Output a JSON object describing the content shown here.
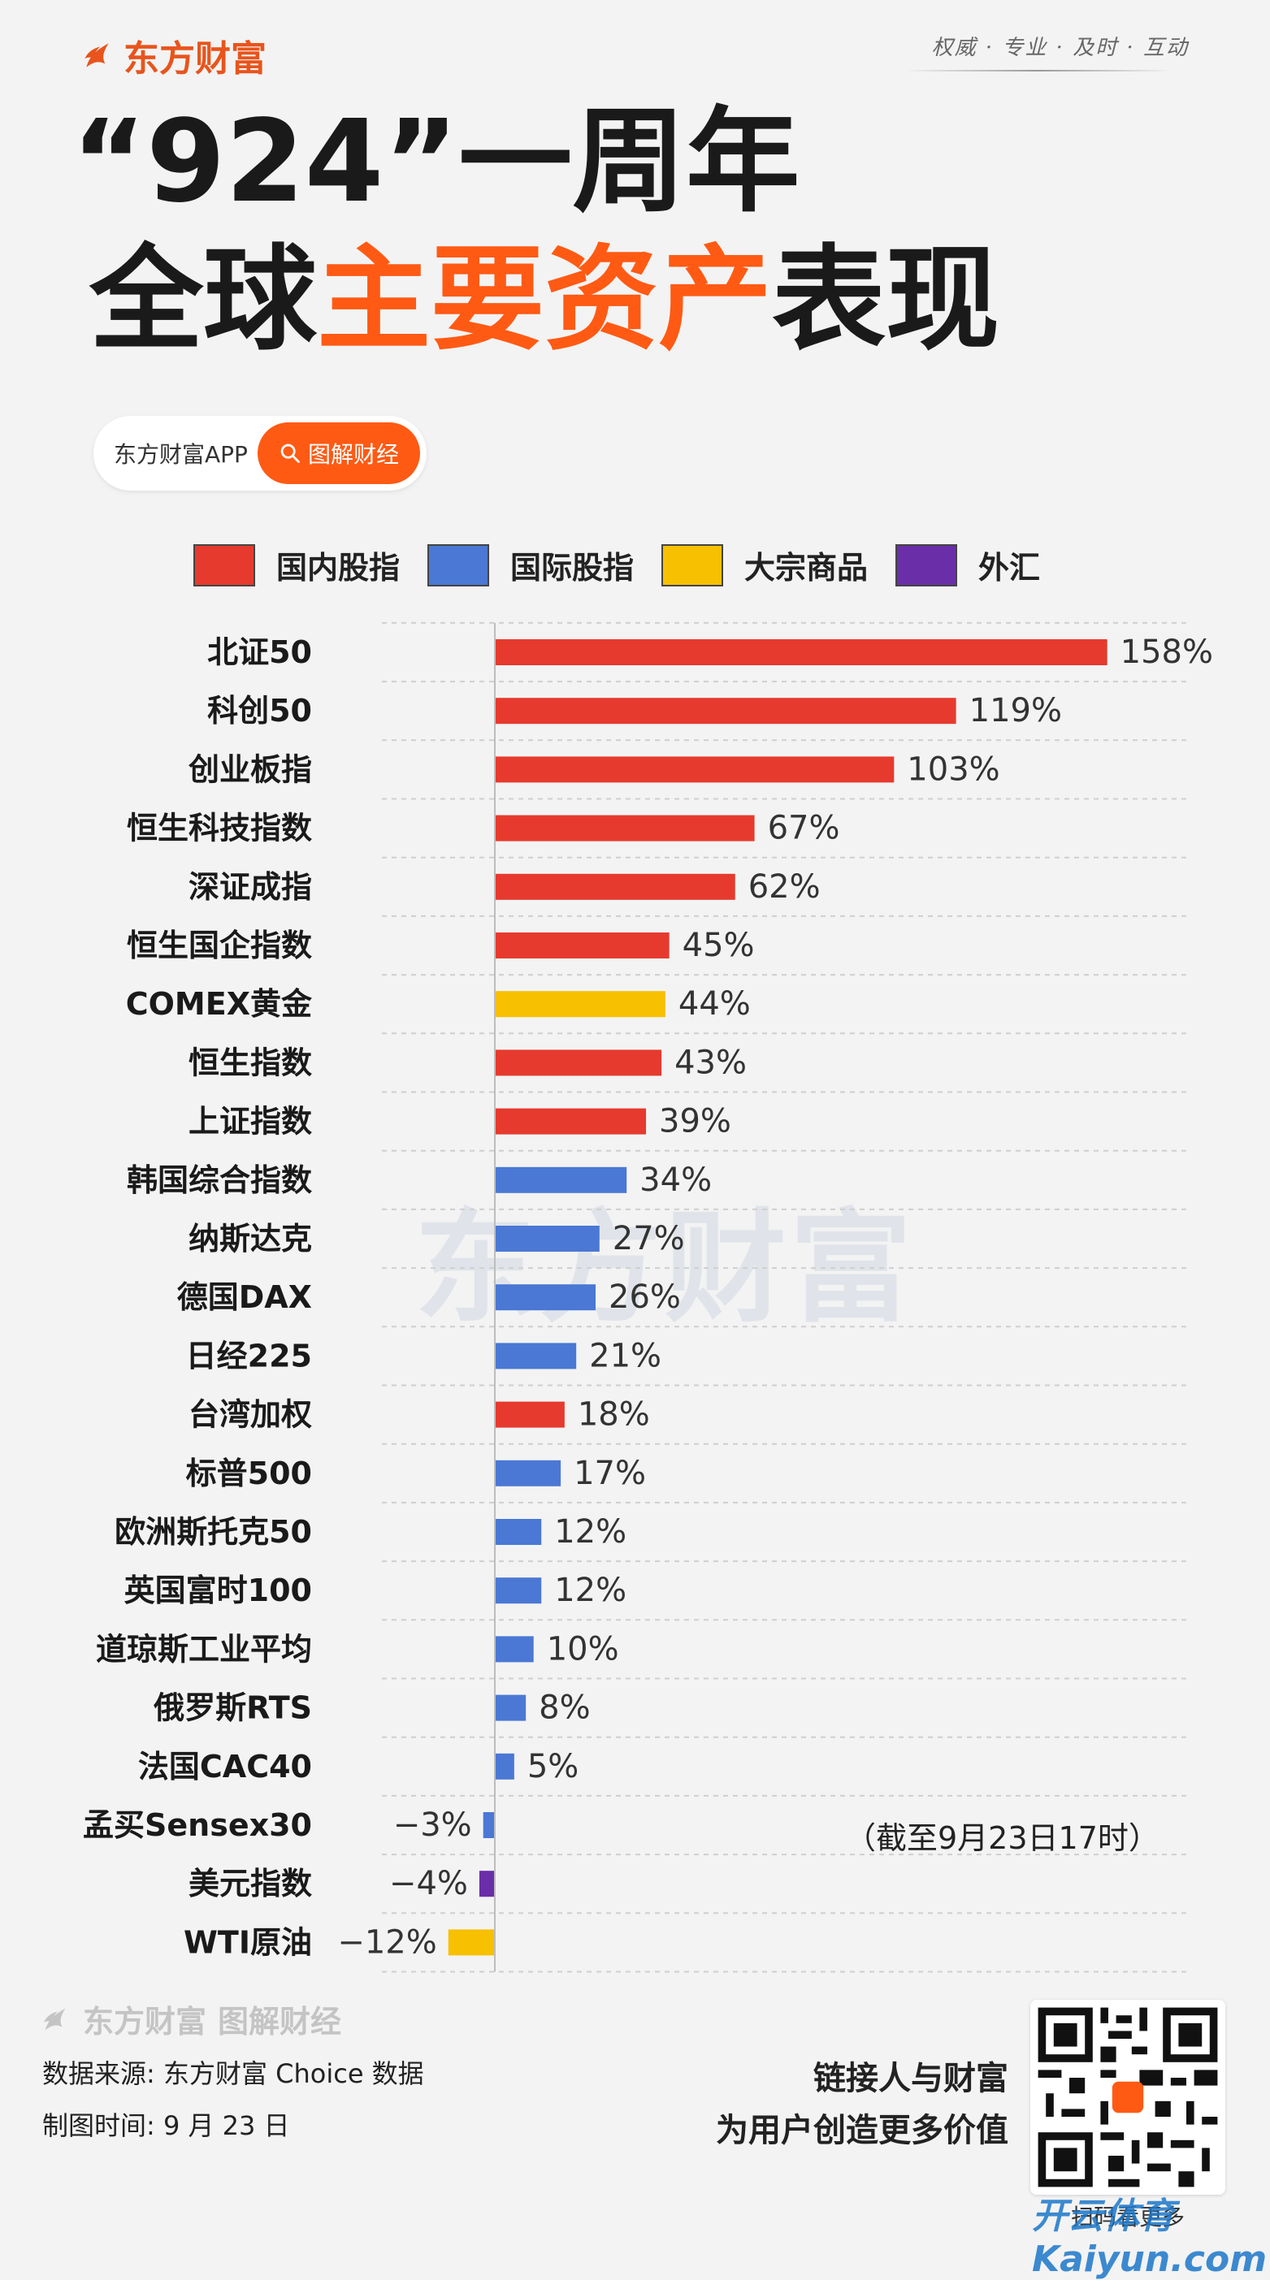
{
  "header": {
    "brand": "东方财富",
    "slogan": "权威 · 专业 · 及时 · 互动",
    "title_line1": "“924”一周年",
    "title_line2_a": "全球",
    "title_line2_hl": "主要资产",
    "title_line2_b": "表现"
  },
  "pill": {
    "app_label": "东方财富APP",
    "button_label": "图解财经"
  },
  "watermark": "东方财富",
  "note": "（截至9月23日17时）",
  "footer": {
    "brand": "东方财富",
    "brand_sub": "图解财经",
    "source": "数据来源: 东方财富 Choice 数据",
    "time": "制图时间: 9 月 23 日",
    "slogan1": "链接人与财富",
    "slogan2": "为用户创造更多价值",
    "qr_caption": "扫码看更多",
    "site_watermark": "开云体育 Kaiyun.com"
  },
  "colors": {
    "domestic": "#e63a2e",
    "international": "#4a78d4",
    "commodity": "#f7c000",
    "fx": "#6a2ea8",
    "accent": "#ff5a14"
  },
  "chart_data": {
    "type": "bar",
    "orientation": "horizontal",
    "unit": "%",
    "legend": [
      {
        "key": "domestic",
        "label": "国内股指"
      },
      {
        "key": "international",
        "label": "国际股指"
      },
      {
        "key": "commodity",
        "label": "大宗商品"
      },
      {
        "key": "fx",
        "label": "外汇"
      }
    ],
    "categories": [
      "北证50",
      "科创50",
      "创业板指",
      "恒生科技指数",
      "深证成指",
      "恒生国企指数",
      "COMEX黄金",
      "恒生指数",
      "上证指数",
      "韩国综合指数",
      "纳斯达克",
      "德国DAX",
      "日经225",
      "台湾加权",
      "标普500",
      "欧洲斯托克50",
      "英国富时100",
      "道琼斯工业平均",
      "俄罗斯RTS",
      "法国CAC40",
      "孟买Sensex30",
      "美元指数",
      "WTI原油"
    ],
    "values": [
      158,
      119,
      103,
      67,
      62,
      45,
      44,
      43,
      39,
      34,
      27,
      26,
      21,
      18,
      17,
      12,
      12,
      10,
      8,
      5,
      -3,
      -4,
      -12
    ],
    "labels": [
      "158%",
      "119%",
      "103%",
      "67%",
      "62%",
      "45%",
      "44%",
      "43%",
      "39%",
      "34%",
      "27%",
      "26%",
      "21%",
      "18%",
      "17%",
      "12%",
      "12%",
      "10%",
      "8%",
      "5%",
      "−3%",
      "−4%",
      "−12%"
    ],
    "groups": [
      "domestic",
      "domestic",
      "domestic",
      "domestic",
      "domestic",
      "domestic",
      "commodity",
      "domestic",
      "domestic",
      "international",
      "international",
      "international",
      "international",
      "domestic",
      "international",
      "international",
      "international",
      "international",
      "international",
      "international",
      "international",
      "fx",
      "commodity"
    ]
  }
}
